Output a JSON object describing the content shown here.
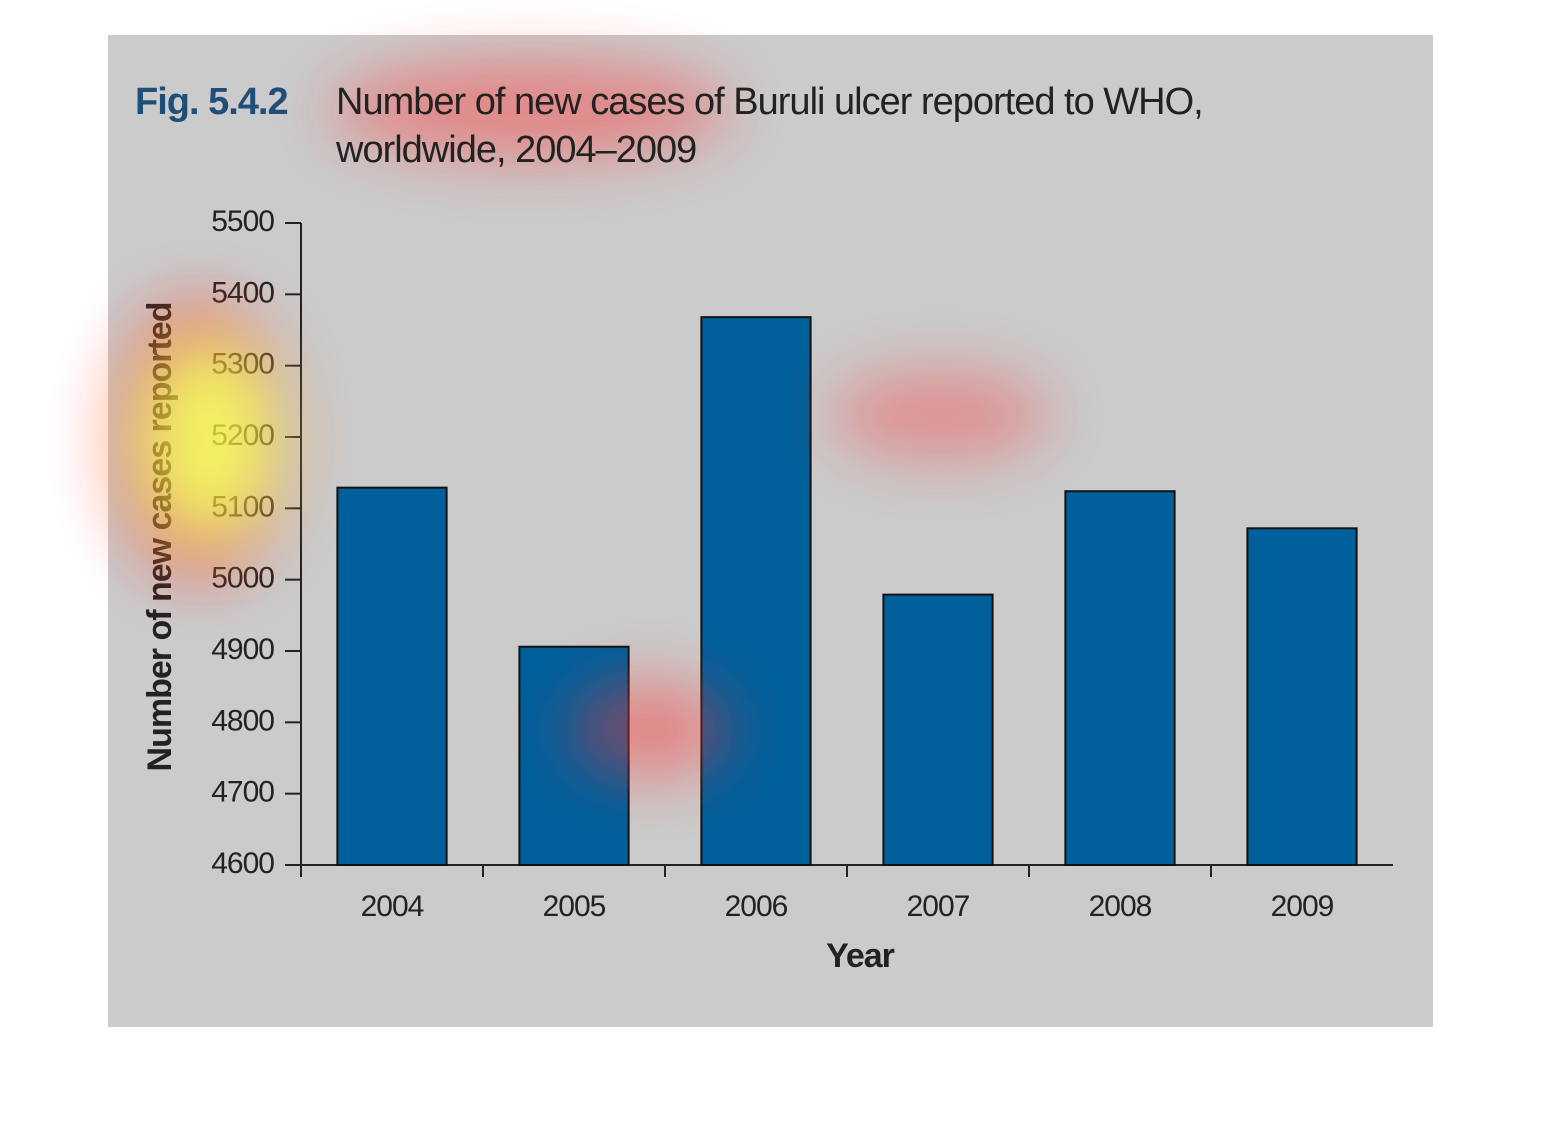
{
  "chart_data": {
    "type": "bar",
    "figure_label": "Fig. 5.4.2",
    "title": "Number of new cases of Buruli ulcer reported to WHO, worldwide, 2004–2009",
    "x_label": "Year",
    "y_label": "Number of new cases reported",
    "categories": [
      "2004",
      "2005",
      "2006",
      "2007",
      "2008",
      "2009"
    ],
    "values": [
      5129,
      4906,
      5368,
      4979,
      5124,
      5072
    ],
    "color": "#00609c",
    "ylim": [
      4600,
      5500
    ],
    "yticks": [
      4600,
      4700,
      4800,
      4900,
      5000,
      5100,
      5200,
      5300,
      5400,
      5500
    ],
    "grid": false
  }
}
